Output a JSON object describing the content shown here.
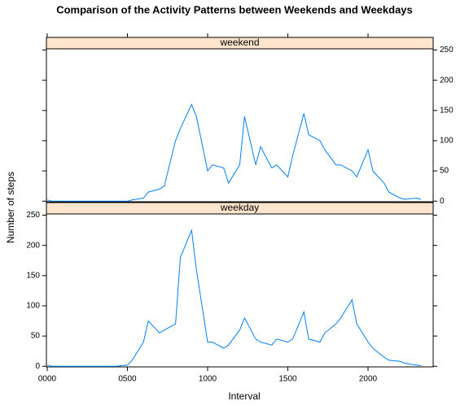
{
  "chart_data": {
    "type": "line",
    "title": "Comparison of the Activity Patterns between Weekends and Weekdays",
    "xlabel": "Interval",
    "ylabel": "Number of steps",
    "x": [
      0,
      30,
      100,
      130,
      200,
      230,
      300,
      330,
      400,
      430,
      500,
      530,
      600,
      630,
      700,
      730,
      800,
      830,
      900,
      930,
      1000,
      1030,
      1100,
      1130,
      1200,
      1230,
      1300,
      1330,
      1400,
      1430,
      1500,
      1530,
      1600,
      1630,
      1700,
      1730,
      1800,
      1830,
      1900,
      1930,
      2000,
      2030,
      2100,
      2130,
      2200,
      2230,
      2300,
      2330
    ],
    "series": [
      {
        "name": "weekend",
        "color": "#0080ff",
        "values": [
          2,
          0,
          0,
          0,
          0,
          0,
          0,
          0,
          0,
          0,
          0,
          2,
          5,
          15,
          20,
          25,
          100,
          120,
          160,
          140,
          50,
          60,
          55,
          30,
          60,
          140,
          60,
          90,
          55,
          60,
          40,
          75,
          145,
          110,
          100,
          85,
          60,
          60,
          50,
          40,
          85,
          50,
          30,
          15,
          5,
          3,
          5,
          3
        ]
      },
      {
        "name": "weekday",
        "color": "#0080ff",
        "values": [
          2,
          0,
          0,
          0,
          0,
          0,
          0,
          0,
          0,
          0,
          2,
          10,
          40,
          75,
          55,
          60,
          70,
          180,
          225,
          160,
          40,
          40,
          30,
          35,
          60,
          80,
          45,
          40,
          35,
          45,
          40,
          45,
          90,
          45,
          40,
          55,
          70,
          80,
          110,
          70,
          40,
          30,
          15,
          10,
          8,
          5,
          2,
          1
        ]
      }
    ],
    "xlim": [
      -5,
      2406
    ],
    "ylim": [
      -1,
      252
    ],
    "xticks": [
      {
        "value": 0,
        "label": "0000"
      },
      {
        "value": 500,
        "label": "0500"
      },
      {
        "value": 1000,
        "label": "1000"
      },
      {
        "value": 1500,
        "label": "1500"
      },
      {
        "value": 2000,
        "label": "2000"
      }
    ],
    "yticks": [
      0,
      50,
      100,
      150,
      200,
      250
    ]
  }
}
